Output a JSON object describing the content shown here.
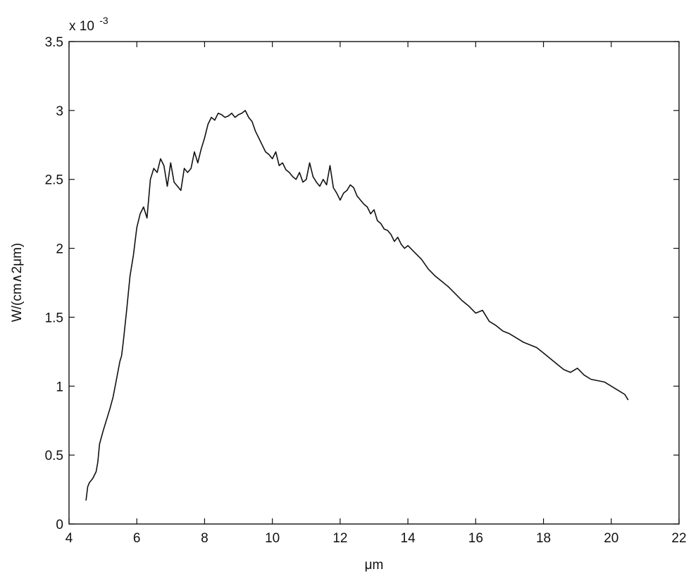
{
  "chart_data": {
    "type": "line",
    "title": "",
    "xlabel": "μm",
    "ylabel": "W/(cm∧2μm)",
    "y_exponent": "x 10",
    "y_exponent_power": "-3",
    "xlim": [
      4,
      22
    ],
    "ylim": [
      0,
      3.5
    ],
    "xticks": [
      4,
      6,
      8,
      10,
      12,
      14,
      16,
      18,
      20,
      22
    ],
    "ytick_values": [
      0,
      0.5,
      1,
      1.5,
      2,
      2.5,
      3,
      3.5
    ],
    "yticks": [
      "0",
      "0.5",
      "1",
      "1.5",
      "2",
      "2.5",
      "3",
      "3.5"
    ],
    "grid": false,
    "line_color": "#111111",
    "series": [
      {
        "x": [
          4.5,
          4.55,
          4.6,
          4.7,
          4.8,
          4.85,
          4.9,
          5.0,
          5.1,
          5.2,
          5.3,
          5.4,
          5.5,
          5.55,
          5.6,
          5.7,
          5.8,
          5.9,
          6.0,
          6.1,
          6.2,
          6.3,
          6.4,
          6.5,
          6.6,
          6.7,
          6.8,
          6.9,
          7.0,
          7.1,
          7.2,
          7.3,
          7.4,
          7.5,
          7.6,
          7.7,
          7.8,
          7.9,
          8.0,
          8.1,
          8.2,
          8.3,
          8.4,
          8.5,
          8.6,
          8.7,
          8.8,
          8.9,
          9.0,
          9.1,
          9.2,
          9.3,
          9.4,
          9.5,
          9.6,
          9.7,
          9.8,
          9.9,
          10.0,
          10.1,
          10.2,
          10.3,
          10.4,
          10.5,
          10.6,
          10.7,
          10.8,
          10.9,
          11.0,
          11.1,
          11.2,
          11.3,
          11.4,
          11.5,
          11.6,
          11.7,
          11.8,
          11.9,
          12.0,
          12.1,
          12.2,
          12.3,
          12.4,
          12.5,
          12.6,
          12.7,
          12.8,
          12.9,
          13.0,
          13.1,
          13.2,
          13.3,
          13.4,
          13.5,
          13.6,
          13.7,
          13.8,
          13.9,
          14.0,
          14.2,
          14.4,
          14.6,
          14.8,
          15.0,
          15.2,
          15.4,
          15.6,
          15.8,
          16.0,
          16.2,
          16.4,
          16.6,
          16.8,
          17.0,
          17.2,
          17.4,
          17.6,
          17.8,
          18.0,
          18.2,
          18.4,
          18.6,
          18.8,
          19.0,
          19.2,
          19.4,
          19.6,
          19.8,
          20.0,
          20.2,
          20.4,
          20.5
        ],
        "y": [
          0.17,
          0.27,
          0.3,
          0.33,
          0.38,
          0.45,
          0.58,
          0.67,
          0.75,
          0.83,
          0.92,
          1.05,
          1.18,
          1.22,
          1.32,
          1.55,
          1.8,
          1.95,
          2.15,
          2.25,
          2.3,
          2.22,
          2.5,
          2.58,
          2.55,
          2.65,
          2.6,
          2.45,
          2.62,
          2.48,
          2.45,
          2.42,
          2.58,
          2.55,
          2.58,
          2.7,
          2.62,
          2.72,
          2.8,
          2.9,
          2.95,
          2.93,
          2.98,
          2.97,
          2.95,
          2.96,
          2.98,
          2.95,
          2.97,
          2.98,
          3.0,
          2.95,
          2.92,
          2.85,
          2.8,
          2.75,
          2.7,
          2.68,
          2.65,
          2.7,
          2.6,
          2.62,
          2.57,
          2.55,
          2.52,
          2.5,
          2.55,
          2.48,
          2.5,
          2.62,
          2.52,
          2.48,
          2.45,
          2.5,
          2.46,
          2.6,
          2.44,
          2.4,
          2.35,
          2.4,
          2.42,
          2.46,
          2.44,
          2.38,
          2.35,
          2.32,
          2.3,
          2.25,
          2.28,
          2.2,
          2.18,
          2.14,
          2.13,
          2.1,
          2.05,
          2.08,
          2.03,
          2.0,
          2.02,
          1.97,
          1.92,
          1.85,
          1.8,
          1.76,
          1.72,
          1.67,
          1.62,
          1.58,
          1.53,
          1.55,
          1.47,
          1.44,
          1.4,
          1.38,
          1.35,
          1.32,
          1.3,
          1.28,
          1.24,
          1.2,
          1.16,
          1.12,
          1.1,
          1.13,
          1.08,
          1.05,
          1.04,
          1.03,
          1.0,
          0.97,
          0.94,
          0.9
        ]
      }
    ]
  }
}
